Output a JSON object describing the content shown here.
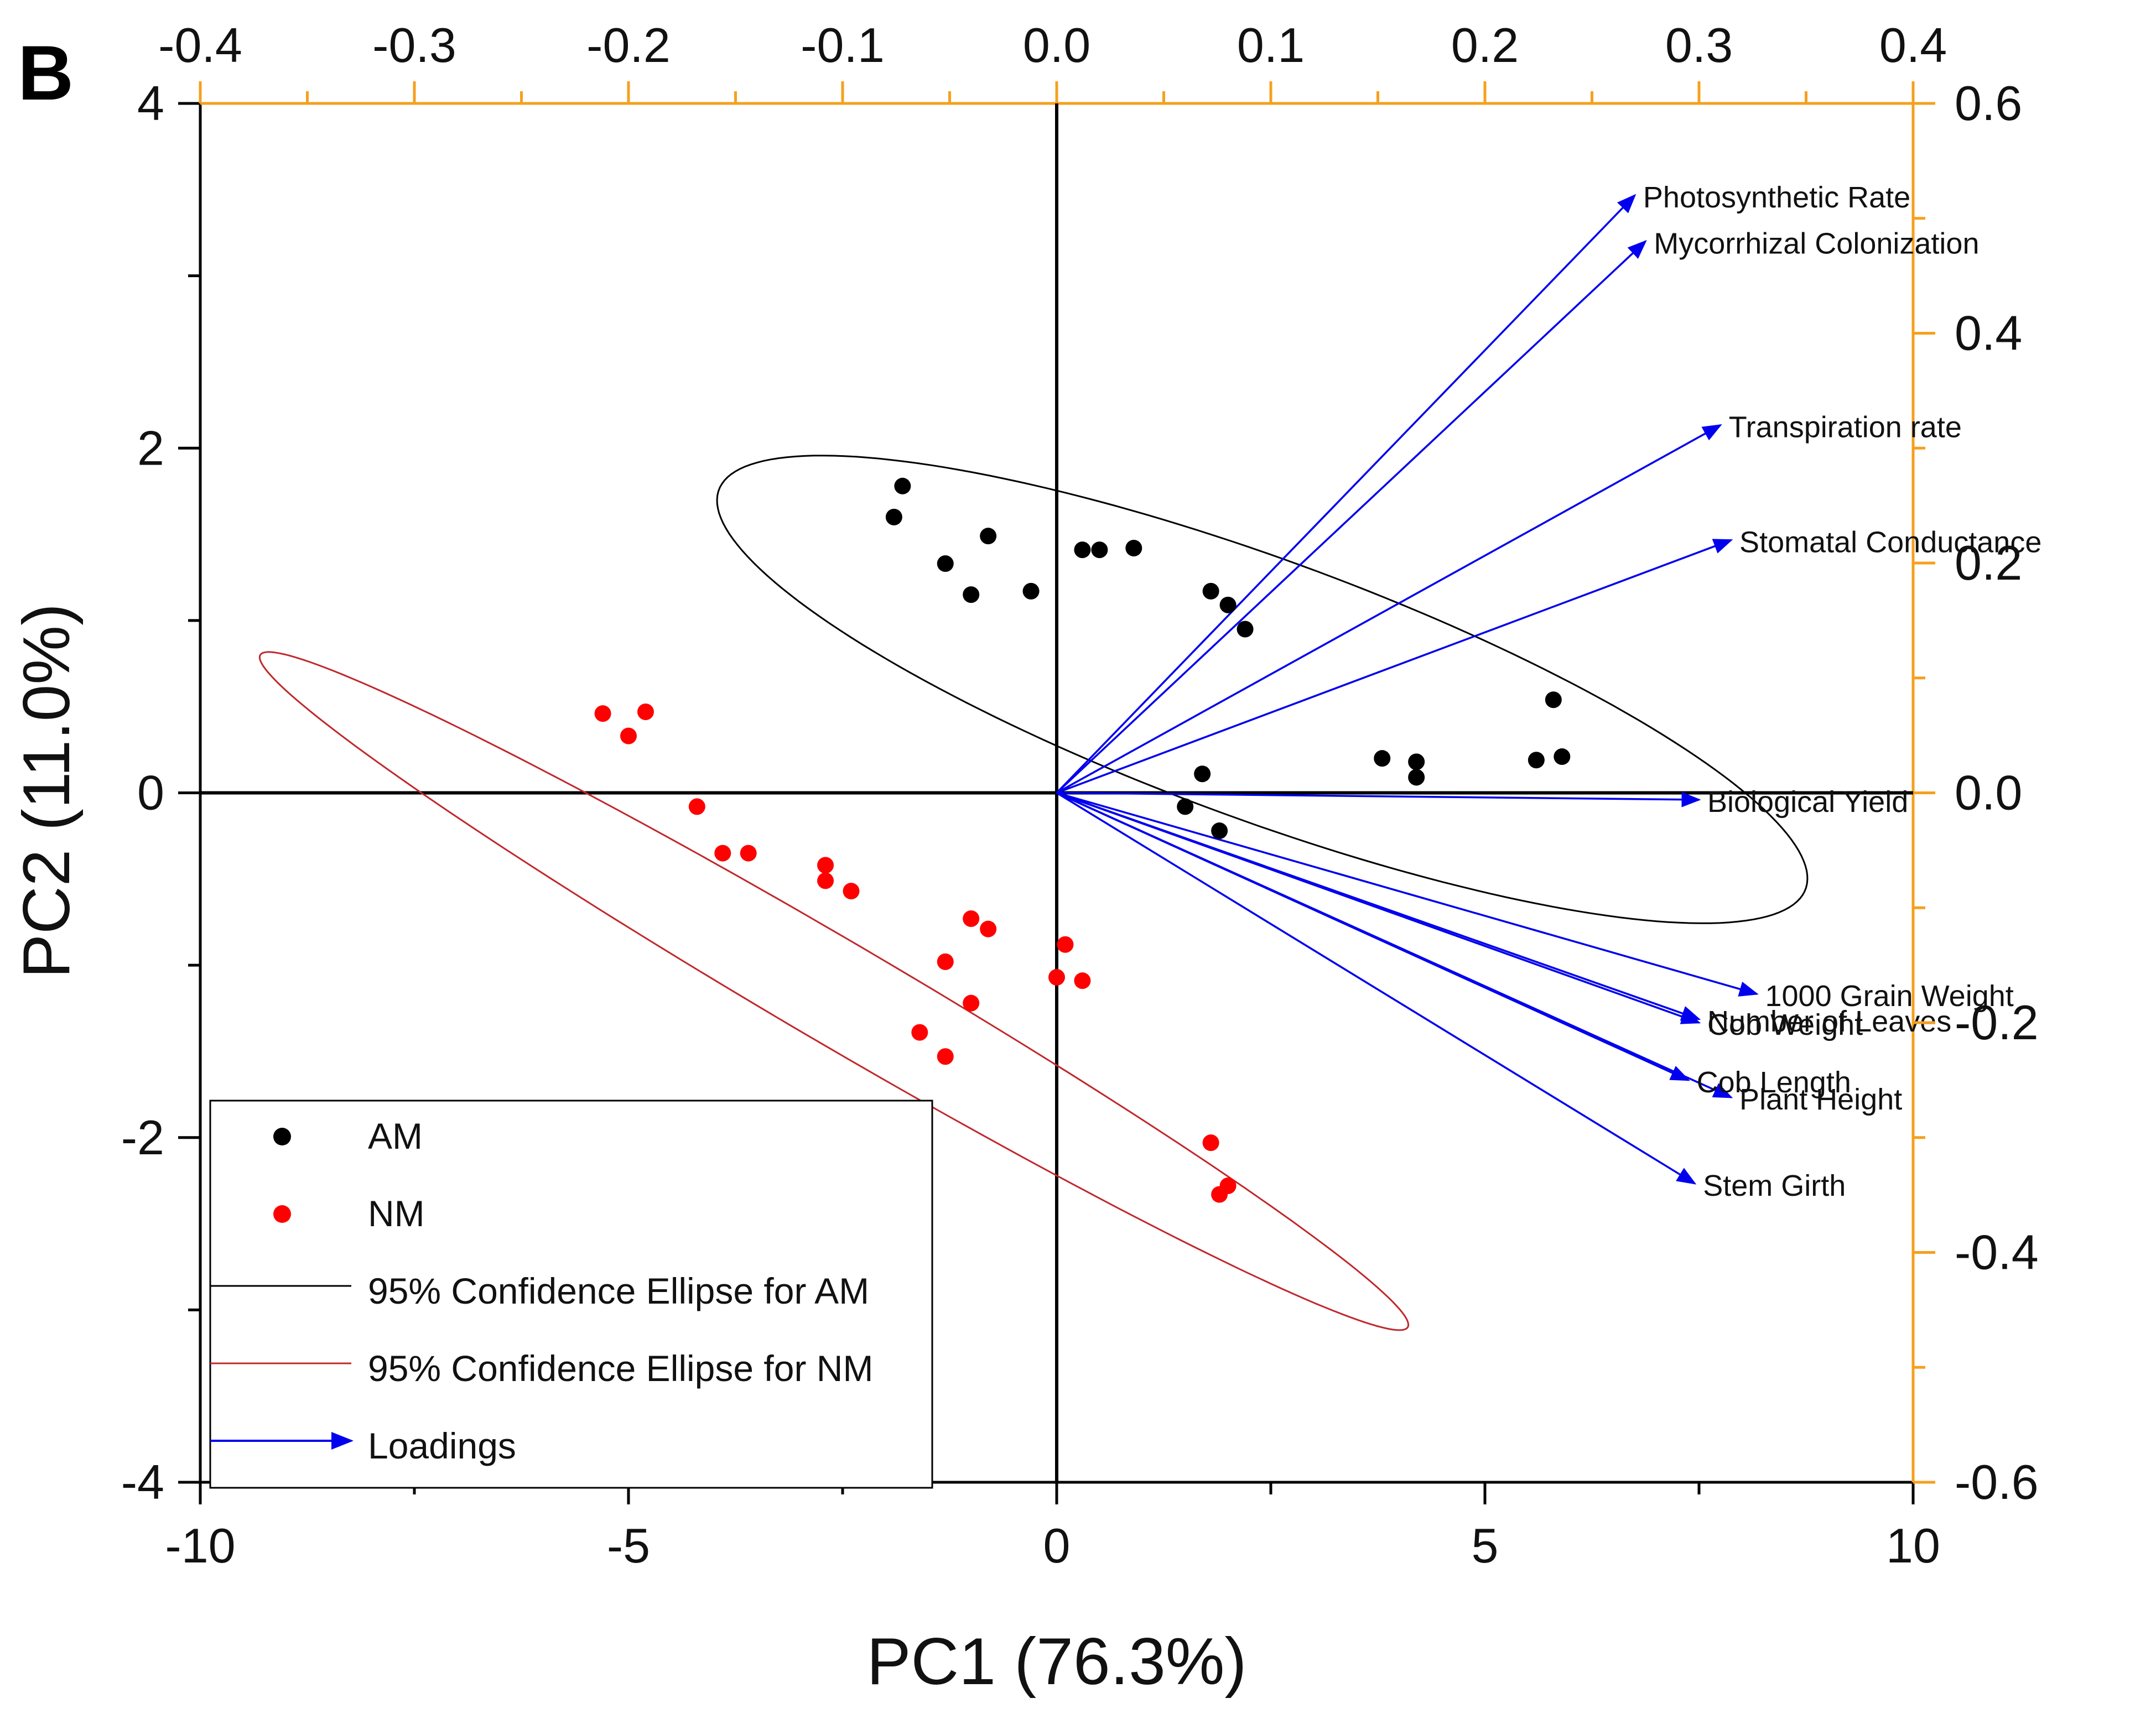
{
  "panel_label": "B",
  "colors": {
    "am": "#000000",
    "nm": "#ff0000",
    "loadings": "#0000ee",
    "secondary_axis": "#f5a01e",
    "axis": "#000000"
  },
  "chart_data": {
    "type": "scatter",
    "title": "",
    "xlabel": "PC1 (76.3%)",
    "ylabel": "PC2 (11.0%)",
    "xlim": [
      -10,
      10
    ],
    "ylim": [
      -4,
      4
    ],
    "x_ticks": [
      -10,
      -5,
      0,
      5,
      10
    ],
    "x_tick_labels": [
      "-10",
      "-5",
      "0",
      "5",
      "10"
    ],
    "y_ticks": [
      -4,
      -2,
      0,
      2,
      4
    ],
    "y_tick_labels": [
      "-4",
      "-2",
      "0",
      "2",
      "4"
    ],
    "top_axis": {
      "lim": [
        -0.4,
        0.4
      ],
      "ticks": [
        -0.4,
        -0.3,
        -0.2,
        -0.1,
        0.0,
        0.1,
        0.2,
        0.3,
        0.4
      ],
      "tick_labels": [
        "-0.4",
        "-0.3",
        "-0.2",
        "-0.1",
        "0.0",
        "0.1",
        "0.2",
        "0.3",
        "0.4"
      ]
    },
    "right_axis": {
      "lim": [
        -0.6,
        0.6
      ],
      "ticks": [
        0.6,
        0.4,
        0.2,
        0.0,
        -0.2,
        -0.4,
        -0.6
      ],
      "tick_labels": [
        "0.6",
        "0.4",
        "0.2",
        "0.0",
        "-0.2",
        "-0.4",
        "-0.6"
      ]
    },
    "series": [
      {
        "name": "AM",
        "points": [
          [
            -1.8,
            1.78
          ],
          [
            -1.9,
            1.6
          ],
          [
            -1.3,
            1.33
          ],
          [
            -0.8,
            1.49
          ],
          [
            -1.0,
            1.15
          ],
          [
            -0.3,
            1.17
          ],
          [
            0.3,
            1.41
          ],
          [
            0.5,
            1.41
          ],
          [
            0.9,
            1.42
          ],
          [
            1.8,
            1.17
          ],
          [
            2.0,
            1.09
          ],
          [
            2.2,
            0.95
          ],
          [
            1.7,
            0.11
          ],
          [
            1.5,
            -0.08
          ],
          [
            1.9,
            -0.22
          ],
          [
            3.8,
            0.2
          ],
          [
            4.2,
            0.18
          ],
          [
            4.2,
            0.09
          ],
          [
            5.6,
            0.19
          ],
          [
            5.8,
            0.54
          ],
          [
            5.9,
            0.21
          ]
        ]
      },
      {
        "name": "NM",
        "points": [
          [
            -5.3,
            0.46
          ],
          [
            -5.0,
            0.33
          ],
          [
            -4.8,
            0.47
          ],
          [
            -4.2,
            -0.08
          ],
          [
            -3.9,
            -0.35
          ],
          [
            -3.6,
            -0.35
          ],
          [
            -2.7,
            -0.42
          ],
          [
            -2.7,
            -0.51
          ],
          [
            -2.4,
            -0.57
          ],
          [
            -1.3,
            -0.98
          ],
          [
            -1.0,
            -0.73
          ],
          [
            -0.8,
            -0.79
          ],
          [
            -1.0,
            -1.22
          ],
          [
            -1.6,
            -1.39
          ],
          [
            -1.3,
            -1.53
          ],
          [
            0.1,
            -0.88
          ],
          [
            0.0,
            -1.07
          ],
          [
            0.3,
            -1.09
          ],
          [
            1.8,
            -2.03
          ],
          [
            2.0,
            -2.28
          ],
          [
            1.9,
            -2.33
          ]
        ]
      }
    ],
    "ellipses": [
      {
        "name": "95% Confidence Ellipse for AM",
        "center": [
          2.4,
          0.6
        ],
        "radius_a": [
          6.35,
          -1.15
        ],
        "radius_b": [
          -0.45,
          -0.72
        ],
        "color": "#000000"
      },
      {
        "name": "95% Confidence Ellipse for NM",
        "center": [
          -2.6,
          -1.15
        ],
        "radius_a": [
          6.7,
          -1.95
        ],
        "radius_b": [
          -0.3,
          -0.26
        ],
        "color": "#c0282d"
      }
    ],
    "loadings": [
      {
        "label": "Photosynthetic Rate",
        "x": 0.27,
        "y": 0.52
      },
      {
        "label": "Mycorrhizal Colonization",
        "x": 0.275,
        "y": 0.48
      },
      {
        "label": "Transpiration rate",
        "x": 0.31,
        "y": 0.32
      },
      {
        "label": "Stomatal Conductance",
        "x": 0.315,
        "y": 0.22
      },
      {
        "label": "Biological Yield",
        "x": 0.3,
        "y": -0.006
      },
      {
        "label": "1000 Grain Weight",
        "x": 0.327,
        "y": -0.175
      },
      {
        "label": "Number of Leaves",
        "x": 0.3,
        "y": -0.197
      },
      {
        "label": "Cob Weight",
        "x": 0.3,
        "y": -0.2
      },
      {
        "label": "Plant Height",
        "x": 0.315,
        "y": -0.265
      },
      {
        "label": "Cob Length",
        "x": 0.295,
        "y": -0.25
      },
      {
        "label": "Stem Girth",
        "x": 0.298,
        "y": -0.34
      }
    ],
    "legend": {
      "position": "bottom-left",
      "items": [
        {
          "label": "AM",
          "symbol": "dot",
          "color": "#000000"
        },
        {
          "label": "NM",
          "symbol": "dot",
          "color": "#ff0000"
        },
        {
          "label": "95% Confidence Ellipse for AM",
          "symbol": "line",
          "color": "#000000"
        },
        {
          "label": "95% Confidence Ellipse for NM",
          "symbol": "line",
          "color": "#c0282d"
        },
        {
          "label": "Loadings",
          "symbol": "arrow",
          "color": "#0000ee"
        }
      ]
    }
  }
}
